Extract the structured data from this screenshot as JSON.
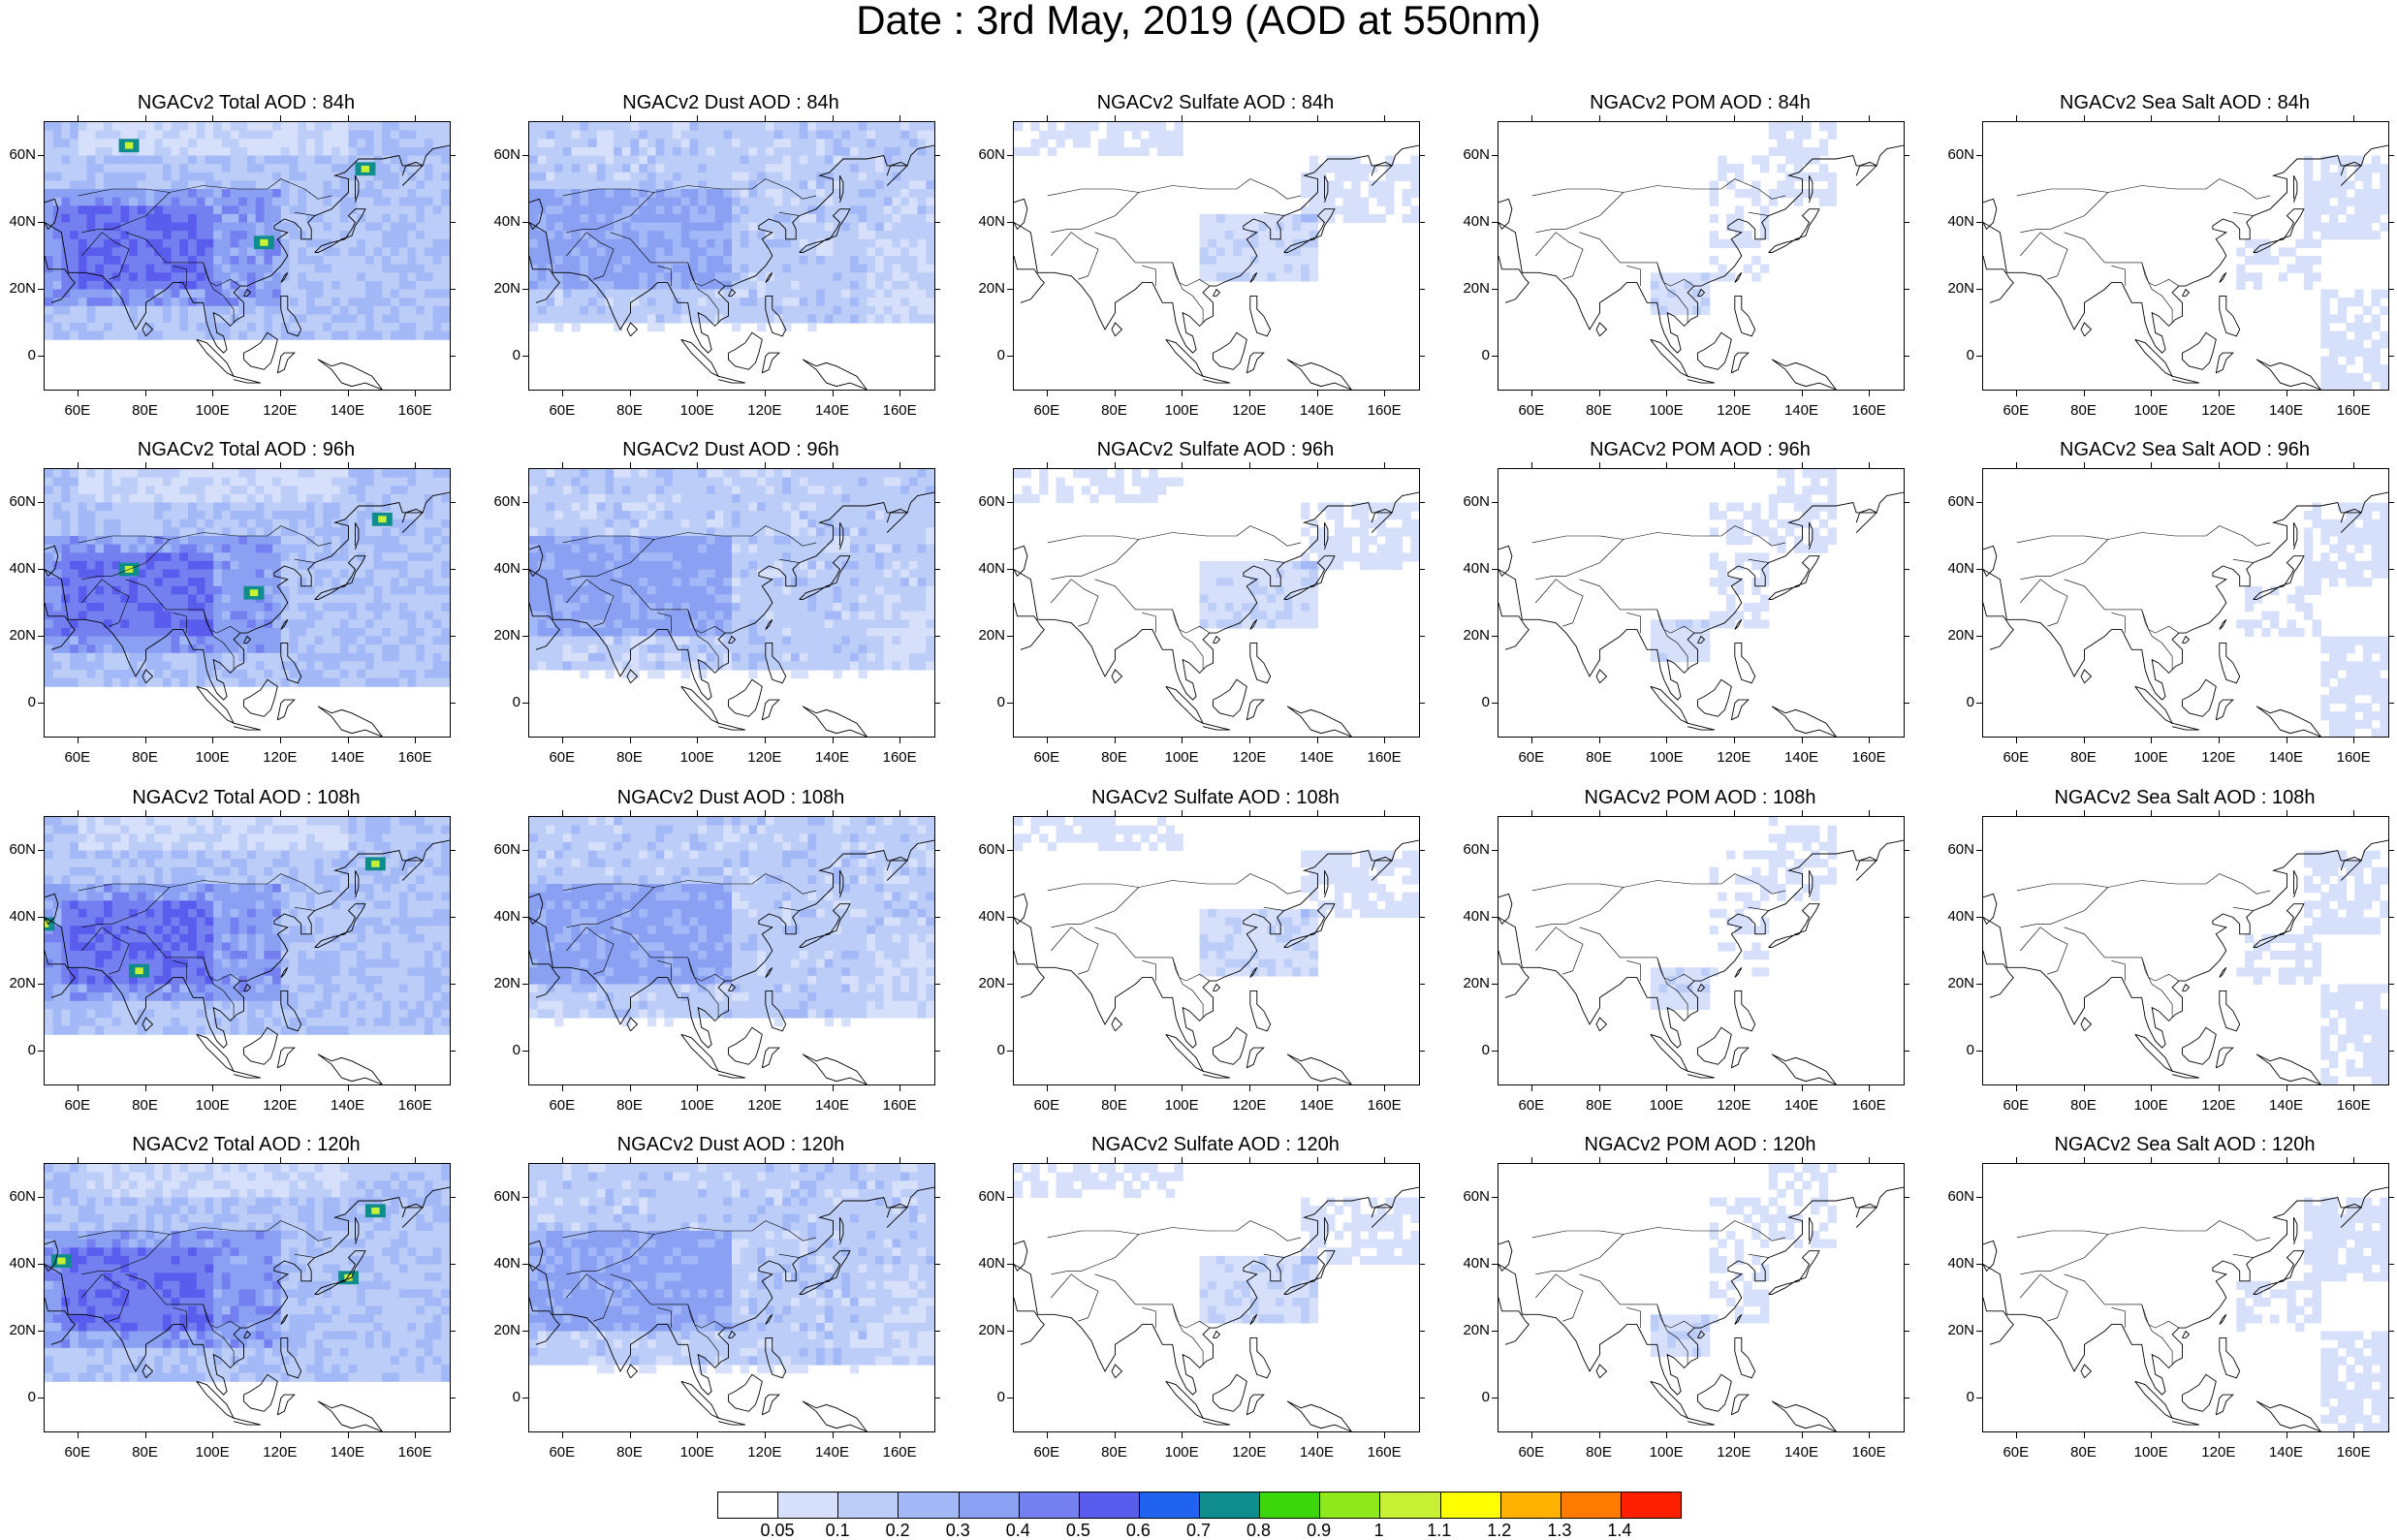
{
  "title": "Date : 3rd May, 2019 (AOD at 550nm)",
  "lat_ticks": [
    "60N",
    "40N",
    "20N",
    "0"
  ],
  "lon_ticks": [
    "60E",
    "80E",
    "100E",
    "120E",
    "140E",
    "160E"
  ],
  "panel_titles": [
    [
      "NGACv2 Total AOD : 84h",
      "NGACv2 Dust AOD : 84h",
      "NGACv2 Sulfate AOD : 84h",
      "NGACv2 POM AOD : 84h",
      "NGACv2 Sea Salt AOD : 84h"
    ],
    [
      "NGACv2 Total AOD : 96h",
      "NGACv2 Dust AOD : 96h",
      "NGACv2 Sulfate AOD : 96h",
      "NGACv2 POM AOD : 96h",
      "NGACv2 Sea Salt AOD : 96h"
    ],
    [
      "NGACv2 Total AOD : 108h",
      "NGACv2 Dust AOD : 108h",
      "NGACv2 Sulfate AOD : 108h",
      "NGACv2 POM AOD : 108h",
      "NGACv2 Sea Salt AOD : 108h"
    ],
    [
      "NGACv2 Total AOD : 120h",
      "NGACv2 Dust AOD : 120h",
      "NGACv2 Sulfate AOD : 120h",
      "NGACv2 POM AOD : 120h",
      "NGACv2 Sea Salt  AOD : 120h"
    ]
  ],
  "species": [
    "total",
    "dust",
    "sulfate",
    "pom",
    "seasalt"
  ],
  "colorbar": {
    "labels": [
      "0.05",
      "0.1",
      "0.2",
      "0.3",
      "0.4",
      "0.5",
      "0.6",
      "0.7",
      "0.8",
      "0.9",
      "1",
      "1.1",
      "1.2",
      "1.3",
      "1.4"
    ],
    "colors": [
      "#ffffff",
      "#d6e0fb",
      "#bccdf8",
      "#a3b8f6",
      "#8aa0f3",
      "#7580f0",
      "#5a5cee",
      "#1f63f0",
      "#0f8c8c",
      "#3cd60c",
      "#8ee81a",
      "#c8f035",
      "#ffff00",
      "#ffb000",
      "#ff7a00",
      "#ff2000"
    ]
  }
}
